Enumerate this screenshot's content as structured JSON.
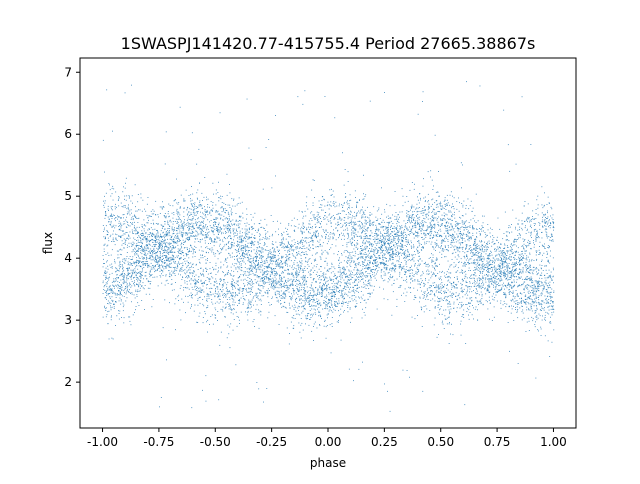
{
  "chart_data": {
    "type": "scatter",
    "title": "1SWASPJ141420.77-415755.4 Period 27665.38867s",
    "xlabel": "phase",
    "ylabel": "flux",
    "xlim": [
      -1.1,
      1.1
    ],
    "ylim": [
      1.26,
      7.23
    ],
    "xticks": [
      "-1.00",
      "-0.75",
      "-0.50",
      "-0.25",
      "0.00",
      "0.25",
      "0.50",
      "0.75",
      "1.00"
    ],
    "yticks": [
      "2",
      "3",
      "4",
      "5",
      "6",
      "7"
    ],
    "grid": false,
    "color": "#1f77b4"
  }
}
